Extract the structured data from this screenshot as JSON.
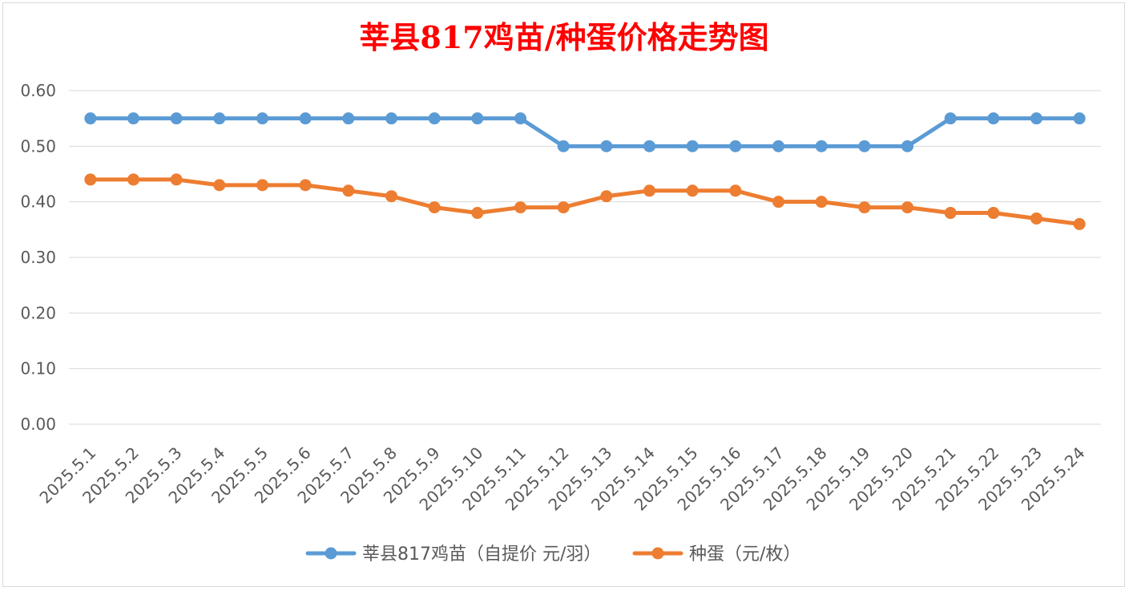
{
  "chart_data": {
    "type": "line",
    "title": "莘县817鸡苗/种蛋价格走势图",
    "xlabel": "",
    "ylabel": "",
    "ylim": [
      0,
      0.6
    ],
    "yticks": [
      "0.00",
      "0.10",
      "0.20",
      "0.30",
      "0.40",
      "0.50",
      "0.60"
    ],
    "grid": true,
    "legend_position": "bottom",
    "categories": [
      "2025.5.1",
      "2025.5.2",
      "2025.5.3",
      "2025.5.4",
      "2025.5.5",
      "2025.5.6",
      "2025.5.7",
      "2025.5.8",
      "2025.5.9",
      "2025.5.10",
      "2025.5.11",
      "2025.5.12",
      "2025.5.13",
      "2025.5.14",
      "2025.5.15",
      "2025.5.16",
      "2025.5.17",
      "2025.5.18",
      "2025.5.19",
      "2025.5.20",
      "2025.5.21",
      "2025.5.22",
      "2025.5.23",
      "2025.5.24"
    ],
    "series": [
      {
        "name": "莘县817鸡苗（自提价 元/羽）",
        "color": "#5b9bd5",
        "values": [
          0.55,
          0.55,
          0.55,
          0.55,
          0.55,
          0.55,
          0.55,
          0.55,
          0.55,
          0.55,
          0.55,
          0.5,
          0.5,
          0.5,
          0.5,
          0.5,
          0.5,
          0.5,
          0.5,
          0.5,
          0.55,
          0.55,
          0.55,
          0.55
        ]
      },
      {
        "name": "种蛋（元/枚）",
        "color": "#ed7d31",
        "values": [
          0.44,
          0.44,
          0.44,
          0.43,
          0.43,
          0.43,
          0.42,
          0.41,
          0.39,
          0.38,
          0.39,
          0.39,
          0.41,
          0.42,
          0.42,
          0.42,
          0.4,
          0.4,
          0.39,
          0.39,
          0.38,
          0.38,
          0.37,
          0.36
        ]
      }
    ]
  }
}
